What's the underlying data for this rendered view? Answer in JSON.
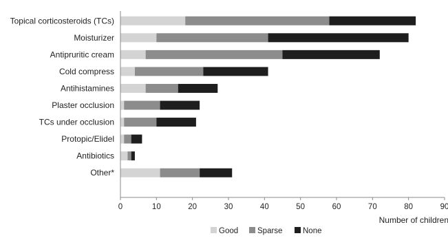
{
  "chart_data": {
    "type": "bar",
    "orientation": "horizontal",
    "stacked": true,
    "categories": [
      "Topical corticosteroids (TCs)",
      "Moisturizer",
      "Antipruritic cream",
      "Cold compress",
      "Antihistamines",
      "Plaster occlusion",
      "TCs under occlusion",
      "Protopic/Elidel",
      "Antibiotics",
      "Other*"
    ],
    "series": [
      {
        "name": "Good",
        "color": "#d4d4d4",
        "values": [
          18,
          10,
          7,
          4,
          7,
          1,
          1,
          1,
          2,
          11
        ]
      },
      {
        "name": "Sparse",
        "color": "#8c8c8c",
        "values": [
          40,
          31,
          38,
          19,
          9,
          10,
          9,
          2,
          1,
          11
        ]
      },
      {
        "name": "None",
        "color": "#1e1e1e",
        "values": [
          24,
          39,
          27,
          18,
          11,
          11,
          11,
          3,
          1,
          9
        ]
      }
    ],
    "xlim": [
      0,
      90
    ],
    "xticks": [
      0,
      10,
      20,
      30,
      40,
      50,
      60,
      70,
      80,
      90
    ],
    "xlabel": "Number of children",
    "ylabel": "",
    "title": "",
    "grid": false,
    "legend": "bottom-center"
  }
}
